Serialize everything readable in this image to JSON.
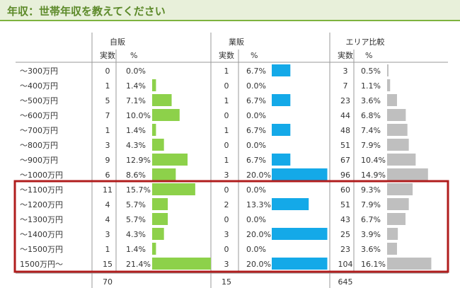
{
  "title": "年収：世帯年収を教えてください",
  "colors": {
    "self": "#8dd14a",
    "sales": "#14a9e8",
    "area": "#bfbfbf",
    "highlight": "#b01d1d",
    "title_bg": "#e8f0da",
    "title_border": "#7eb33f"
  },
  "chart_data": {
    "type": "table",
    "group_headers": [
      "自販",
      "業販",
      "エリア比較"
    ],
    "column_headers": {
      "count": "実数",
      "percent": "%"
    },
    "categories": [
      "～300万円",
      "～400万円",
      "～500万円",
      "～600万円",
      "～700万円",
      "～800万円",
      "～900万円",
      "～1000万円",
      "～1100万円",
      "～1200万円",
      "～1300万円",
      "～1400万円",
      "～1500万円",
      "1500万円～"
    ],
    "series": [
      {
        "name": "自販",
        "counts": [
          0,
          1,
          5,
          7,
          1,
          3,
          9,
          6,
          11,
          4,
          4,
          3,
          1,
          15
        ],
        "percents": [
          "0.0%",
          "1.4%",
          "7.1%",
          "10.0%",
          "1.4%",
          "4.3%",
          "12.9%",
          "8.6%",
          "15.7%",
          "5.7%",
          "5.7%",
          "4.3%",
          "1.4%",
          "21.4%"
        ],
        "values": [
          0.0,
          1.4,
          7.1,
          10.0,
          1.4,
          4.3,
          12.9,
          8.6,
          15.7,
          5.7,
          5.7,
          4.3,
          1.4,
          21.4
        ],
        "total": "70"
      },
      {
        "name": "業販",
        "counts": [
          1,
          0,
          1,
          0,
          1,
          0,
          1,
          3,
          0,
          2,
          0,
          3,
          0,
          3
        ],
        "percents": [
          "6.7%",
          "0.0%",
          "6.7%",
          "0.0%",
          "6.7%",
          "0.0%",
          "6.7%",
          "20.0%",
          "0.0%",
          "13.3%",
          "0.0%",
          "20.0%",
          "0.0%",
          "20.0%"
        ],
        "values": [
          6.7,
          0.0,
          6.7,
          0.0,
          6.7,
          0.0,
          6.7,
          20.0,
          0.0,
          13.3,
          0.0,
          20.0,
          0.0,
          20.0
        ],
        "total": "15"
      },
      {
        "name": "エリア比較",
        "counts": [
          3,
          7,
          23,
          44,
          48,
          51,
          67,
          96,
          60,
          51,
          43,
          25,
          23,
          104
        ],
        "percents": [
          "0.5%",
          "1.1%",
          "3.6%",
          "6.8%",
          "7.4%",
          "7.9%",
          "10.4%",
          "14.9%",
          "9.3%",
          "7.9%",
          "6.7%",
          "3.9%",
          "3.6%",
          "16.1%"
        ],
        "values": [
          0.5,
          1.1,
          3.6,
          6.8,
          7.4,
          7.9,
          10.4,
          14.9,
          9.3,
          7.9,
          6.7,
          3.9,
          3.6,
          16.1
        ],
        "total": "645"
      }
    ],
    "highlighted_rows": [
      "～1100万円",
      "～1200万円",
      "～1300万円",
      "～1400万円",
      "～1500万円",
      "1500万円～"
    ]
  }
}
